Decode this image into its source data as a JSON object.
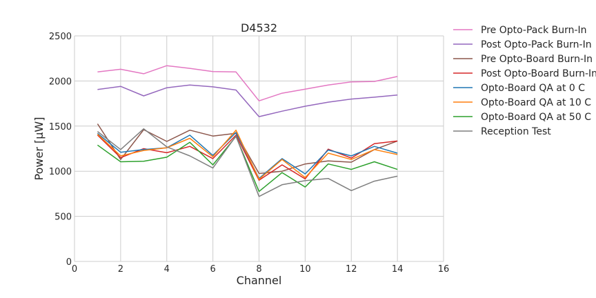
{
  "chart_data": {
    "type": "line",
    "title": "D4532",
    "xlabel": "Channel",
    "ylabel": "Power [µW]",
    "xlim": [
      0,
      16
    ],
    "ylim": [
      0,
      2500
    ],
    "xticks": [
      0,
      2,
      4,
      6,
      8,
      10,
      12,
      14,
      16
    ],
    "yticks": [
      0,
      500,
      1000,
      1500,
      2000,
      2500
    ],
    "grid": true,
    "legend": "outside-right",
    "x": [
      1,
      2,
      3,
      4,
      5,
      6,
      7,
      8,
      9,
      10,
      11,
      12,
      13,
      14
    ],
    "series": [
      {
        "name": "Pre Opto-Pack Burn-In",
        "color": "#e377c2",
        "values": [
          2100,
          2130,
          2080,
          2170,
          2140,
          2105,
          2100,
          1780,
          1865,
          1910,
          1955,
          1990,
          1995,
          2050
        ]
      },
      {
        "name": "Post Opto-Pack Burn-In",
        "color": "#9467bd",
        "values": [
          1905,
          1940,
          1835,
          1925,
          1955,
          1935,
          1900,
          1605,
          1665,
          1720,
          1765,
          1800,
          1820,
          1845
        ]
      },
      {
        "name": "Pre Opto-Board Burn-In",
        "color": "#8c564b",
        "values": [
          1525,
          1130,
          1460,
          1330,
          1455,
          1390,
          1420,
          975,
          1000,
          1080,
          1115,
          1100,
          1240,
          1335
        ]
      },
      {
        "name": "Post Opto-Board Burn-In",
        "color": "#d62728",
        "values": [
          1400,
          1150,
          1250,
          1205,
          1275,
          1140,
          1400,
          900,
          1070,
          915,
          1245,
          1145,
          1305,
          1335
        ]
      },
      {
        "name": "Opto-Board QA at 0 C",
        "color": "#1f77b4",
        "values": [
          1420,
          1210,
          1240,
          1260,
          1400,
          1175,
          1430,
          920,
          1140,
          970,
          1235,
          1170,
          1275,
          1200
        ]
      },
      {
        "name": "Opto-Board QA at 10 C",
        "color": "#ff7f0e",
        "values": [
          1410,
          1170,
          1230,
          1260,
          1365,
          1160,
          1455,
          910,
          1130,
          930,
          1200,
          1130,
          1240,
          1185
        ]
      },
      {
        "name": "Opto-Board QA at 50 C",
        "color": "#2ca02c",
        "values": [
          1290,
          1105,
          1110,
          1155,
          1320,
          1070,
          1385,
          775,
          985,
          825,
          1080,
          1020,
          1105,
          1020
        ]
      },
      {
        "name": "Reception Test",
        "color": "#7f7f7f",
        "values": [
          1440,
          1240,
          1470,
          1270,
          1170,
          1035,
          1390,
          720,
          850,
          895,
          920,
          785,
          890,
          945
        ]
      }
    ]
  }
}
